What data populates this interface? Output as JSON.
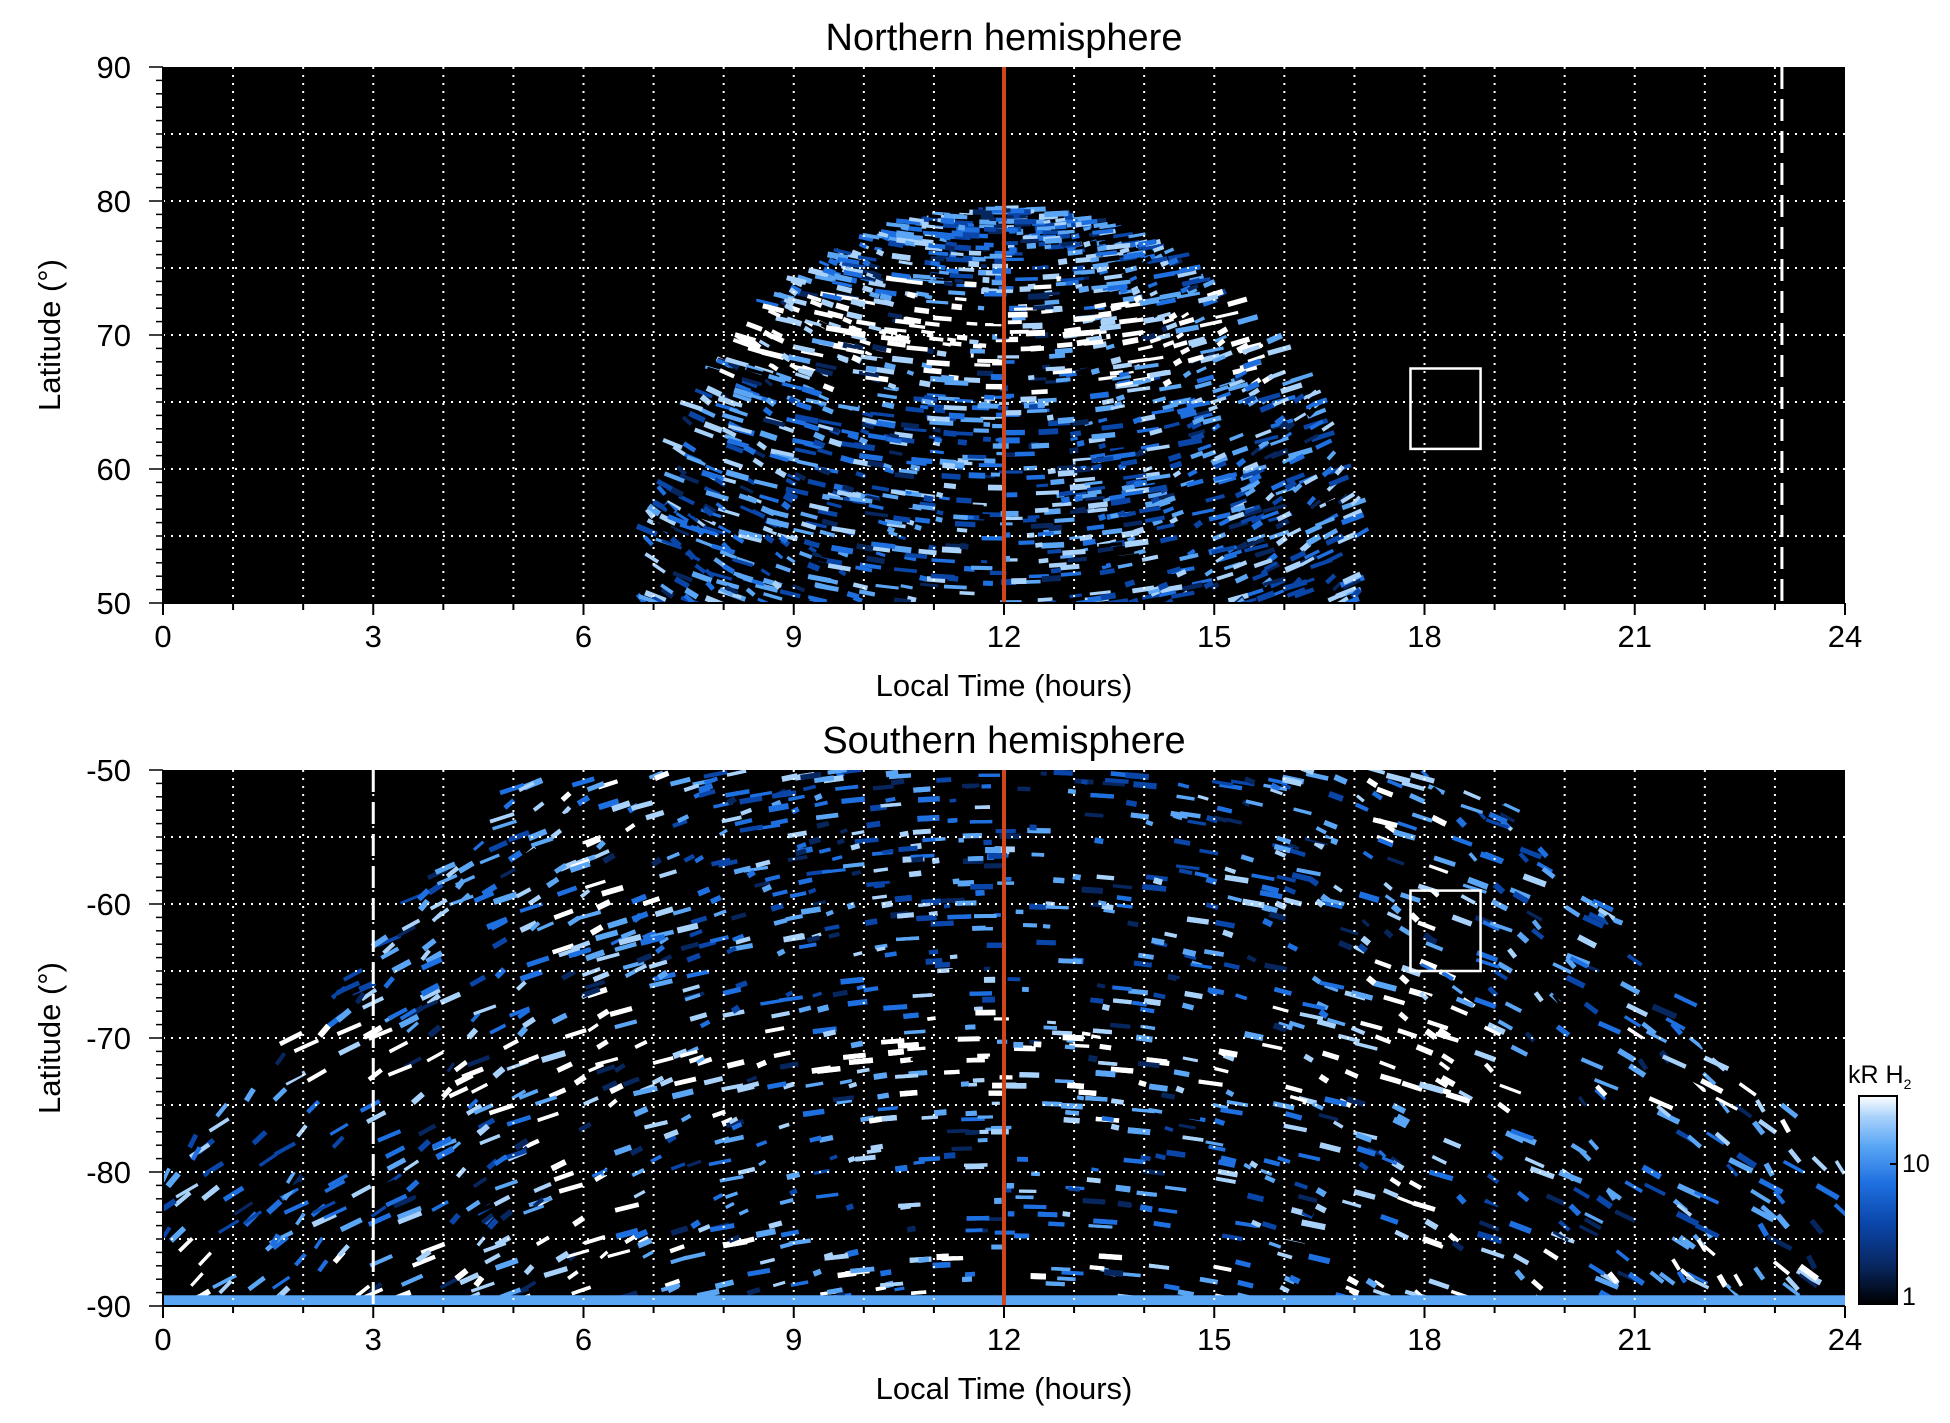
{
  "colors": {
    "background": "#000000",
    "grid": "#ffffff",
    "noon_line": "#d0461c",
    "colormap": [
      "#000000",
      "#08265e",
      "#0a45a8",
      "#1e6fe0",
      "#5aa6f5",
      "#a9d2fb",
      "#ffffff"
    ]
  },
  "chart_data": [
    {
      "type": "heatmap",
      "title": "Northern hemisphere",
      "xlabel": "Local Time (hours)",
      "ylabel": "Latitude (°)",
      "xlim": [
        0,
        24
      ],
      "ylim": [
        50,
        90
      ],
      "x_ticks": [
        0,
        3,
        6,
        9,
        12,
        15,
        18,
        21,
        24
      ],
      "y_ticks": [
        50,
        60,
        70,
        80,
        90
      ],
      "grid": true,
      "coverage": "dayside only, from about 7 to 17 h local time, up to about 79° latitude",
      "auroral_oval": {
        "center_latitude": 70,
        "intensity": "brightest near 10-11 h"
      },
      "noon_line_lt": 12,
      "dashed_line_lt": 23.1,
      "box": {
        "lt_range": [
          17.8,
          18.8
        ],
        "lat_range": [
          61.5,
          67.5
        ]
      }
    },
    {
      "type": "heatmap",
      "title": "Southern hemisphere",
      "xlabel": "Local Time (hours)",
      "ylabel": "Latitude (°)",
      "xlim": [
        0,
        24
      ],
      "ylim": [
        -90,
        -50
      ],
      "x_ticks": [
        0,
        3,
        6,
        9,
        12,
        15,
        18,
        21,
        24
      ],
      "y_ticks": [
        -90,
        -80,
        -70,
        -60,
        -50
      ],
      "grid": true,
      "coverage": "wide local-time coverage; full 0-24 h near the pole, about 5-19 h at -50°",
      "auroral_oval": {
        "center_latitude": -72,
        "intensity": "bright arcs near 5-7 h and 17-19 h"
      },
      "noon_line_lt": 12,
      "dashed_line_lt": 3,
      "box": {
        "lt_range": [
          17.8,
          18.8
        ],
        "lat_range": [
          -65,
          -59
        ]
      },
      "colorbar": {
        "title": "kR H",
        "title_subscript": "2",
        "scale": "log",
        "range": [
          1,
          30
        ],
        "tick_labels": [
          "1",
          "10"
        ]
      }
    }
  ]
}
